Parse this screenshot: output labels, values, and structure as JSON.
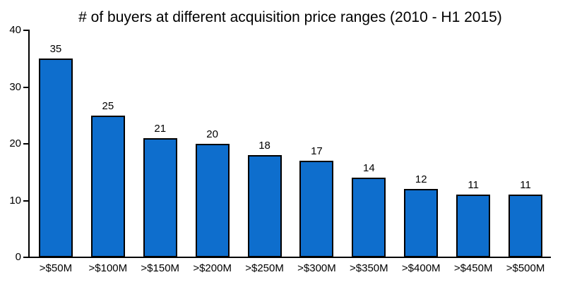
{
  "chart_data": {
    "type": "bar",
    "title": "# of buyers at different acquisition price ranges (2010 - H1 2015)",
    "categories": [
      ">$50M",
      ">$100M",
      ">$150M",
      ">$200M",
      ">$250M",
      ">$300M",
      ">$350M",
      ">$400M",
      ">$450M",
      ">$500M"
    ],
    "values": [
      35,
      25,
      21,
      20,
      18,
      17,
      14,
      12,
      11,
      11
    ],
    "xlabel": "",
    "ylabel": "",
    "ylim": [
      0,
      40
    ],
    "yticks": [
      0,
      10,
      20,
      30,
      40
    ],
    "grid": false,
    "legend": "none",
    "data_labels": true,
    "bar_fill_color": "#0e6ecd",
    "bar_border_color": "#000000",
    "axis_color": "#000000",
    "text_color": "#000000"
  }
}
